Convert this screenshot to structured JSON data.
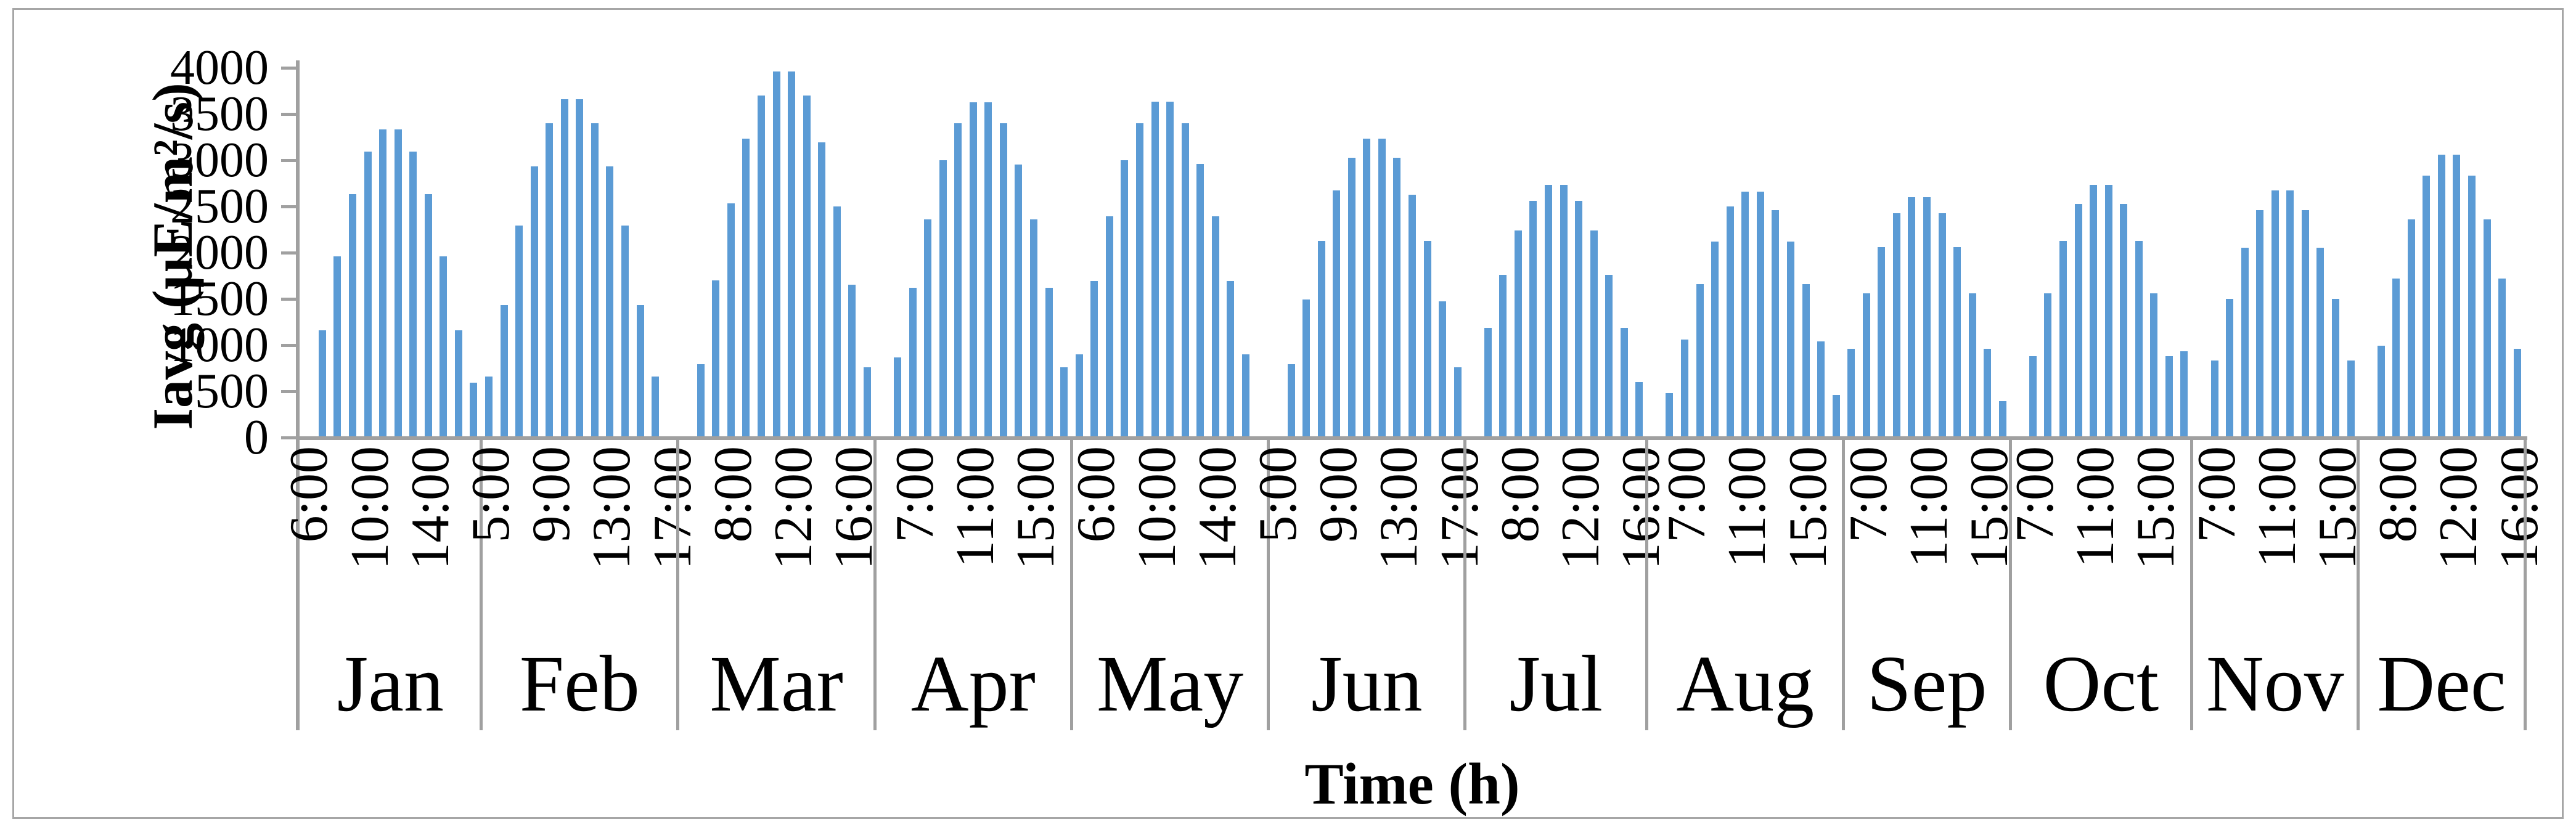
{
  "colors": {
    "bar": "#5b9bd5",
    "axis": "#a0a0a0",
    "frame": "#a6a6a6",
    "text": "#000000"
  },
  "chart_data": {
    "type": "bar",
    "title": "",
    "ylabel": "Iavg (µE/m²/s)",
    "xlabel": "Time (h)",
    "ylim": [
      0,
      4000
    ],
    "ytick_step": 500,
    "ytick_labels": [
      "4000",
      "3500",
      "3000",
      "2500",
      "2000",
      "1500",
      "1000",
      "500",
      "0"
    ],
    "grid": false,
    "legend": false,
    "bar_color": "#5b9bd5",
    "months": [
      {
        "name": "Jan",
        "slots": 12,
        "lead_gap": true,
        "bars": [
          1150,
          1950,
          2620,
          3080,
          3320,
          3320,
          3080,
          2620,
          1950,
          1150,
          580
        ],
        "labels": [
          {
            "text": "6:00",
            "slot": 0
          },
          {
            "text": "10:00",
            "slot": 4
          },
          {
            "text": "14:00",
            "slot": 8
          }
        ]
      },
      {
        "name": "Feb",
        "slots": 13,
        "lead_gap": false,
        "bars": [
          650,
          1420,
          2280,
          2920,
          3390,
          3650,
          3650,
          3390,
          2920,
          2280,
          1420,
          650
        ],
        "labels": [
          {
            "text": "5:00",
            "slot": 0
          },
          {
            "text": "9:00",
            "slot": 4
          },
          {
            "text": "13:00",
            "slot": 8
          },
          {
            "text": "17:00",
            "slot": 12
          }
        ]
      },
      {
        "name": "Mar",
        "slots": 13,
        "lead_gap": true,
        "bars": [
          780,
          1690,
          2520,
          3220,
          3690,
          3950,
          3950,
          3690,
          3180,
          2490,
          1640,
          750
        ],
        "labels": [
          {
            "text": "8:00",
            "slot": 3
          },
          {
            "text": "12:00",
            "slot": 7
          },
          {
            "text": "16:00",
            "slot": 11
          }
        ]
      },
      {
        "name": "Apr",
        "slots": 13,
        "lead_gap": true,
        "bars": [
          855,
          1610,
          2350,
          2990,
          3390,
          3615,
          3615,
          3390,
          2940,
          2350,
          1610,
          750
        ],
        "labels": [
          {
            "text": "7:00",
            "slot": 2
          },
          {
            "text": "11:00",
            "slot": 6
          },
          {
            "text": "15:00",
            "slot": 10
          }
        ]
      },
      {
        "name": "May",
        "slots": 13,
        "lead_gap": false,
        "bars": [
          884,
          1680,
          2380,
          2985,
          3385,
          3620,
          3620,
          3385,
          2950,
          2380,
          1680,
          884
        ],
        "labels": [
          {
            "text": "6:00",
            "slot": 1
          },
          {
            "text": "10:00",
            "slot": 5
          },
          {
            "text": "14:00",
            "slot": 9
          }
        ]
      },
      {
        "name": "Jun",
        "slots": 13,
        "lead_gap": true,
        "bars": [
          780,
          1480,
          2115,
          2660,
          3015,
          3220,
          3220,
          3015,
          2615,
          2115,
          1460,
          750
        ],
        "labels": [
          {
            "text": "5:00",
            "slot": 0
          },
          {
            "text": "9:00",
            "slot": 4
          },
          {
            "text": "13:00",
            "slot": 8
          },
          {
            "text": "17:00",
            "slot": 12
          }
        ]
      },
      {
        "name": "Jul",
        "slots": 12,
        "lead_gap": true,
        "bars": [
          1175,
          1750,
          2225,
          2550,
          2720,
          2720,
          2550,
          2225,
          1750,
          1175,
          590
        ],
        "labels": [
          {
            "text": "8:00",
            "slot": 3
          },
          {
            "text": "12:00",
            "slot": 7
          },
          {
            "text": "16:00",
            "slot": 11
          }
        ]
      },
      {
        "name": "Aug",
        "slots": 13,
        "lead_gap": true,
        "bars": [
          470,
          1050,
          1645,
          2110,
          2485,
          2650,
          2650,
          2445,
          2110,
          1645,
          1030,
          450
        ],
        "labels": [
          {
            "text": "7:00",
            "slot": 2
          },
          {
            "text": "11:00",
            "slot": 6
          },
          {
            "text": "15:00",
            "slot": 10
          }
        ]
      },
      {
        "name": "Sep",
        "slots": 11,
        "lead_gap": false,
        "bars": [
          950,
          1550,
          2045,
          2415,
          2585,
          2585,
          2415,
          2045,
          1550,
          950,
          380
        ],
        "labels": [
          {
            "text": "7:00",
            "slot": 1
          },
          {
            "text": "11:00",
            "slot": 5
          },
          {
            "text": "15:00",
            "slot": 9
          }
        ]
      },
      {
        "name": "Oct",
        "slots": 12,
        "lead_gap": true,
        "bars": [
          870,
          1550,
          2115,
          2515,
          2720,
          2720,
          2515,
          2115,
          1550,
          870,
          920
        ],
        "labels": [
          {
            "text": "7:00",
            "slot": 1
          },
          {
            "text": "11:00",
            "slot": 5
          },
          {
            "text": "15:00",
            "slot": 9
          }
        ]
      },
      {
        "name": "Nov",
        "slots": 11,
        "lead_gap": true,
        "bars": [
          820,
          1490,
          2040,
          2450,
          2660,
          2660,
          2450,
          2040,
          1490,
          820
        ],
        "labels": [
          {
            "text": "7:00",
            "slot": 1
          },
          {
            "text": "11:00",
            "slot": 5
          },
          {
            "text": "15:00",
            "slot": 9
          }
        ]
      },
      {
        "name": "Dec",
        "slots": 11,
        "lead_gap": true,
        "bars": [
          980,
          1710,
          2350,
          2820,
          3050,
          3050,
          2820,
          2350,
          1710,
          950
        ],
        "labels": [
          {
            "text": "8:00",
            "slot": 2
          },
          {
            "text": "12:00",
            "slot": 6
          },
          {
            "text": "16:00",
            "slot": 10
          }
        ]
      }
    ]
  }
}
